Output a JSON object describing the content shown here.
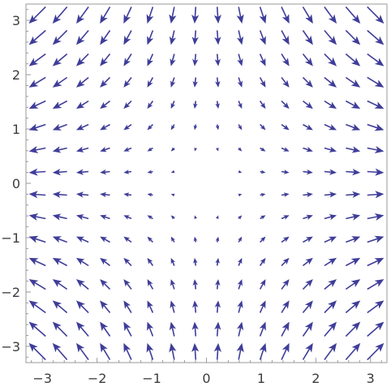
{
  "chart_data": {
    "type": "vector_field",
    "field": {
      "u": "x",
      "v": "-y"
    },
    "x_range": [
      -3.3,
      3.3
    ],
    "y_range": [
      -3.3,
      3.3
    ],
    "grid_samples": {
      "x_step": 0.4125,
      "y_step": 0.4125,
      "count_per_axis": 16,
      "start": -3.09375
    },
    "xticks": [
      -3,
      -2,
      -1,
      0,
      1,
      2,
      3
    ],
    "yticks": [
      -3,
      -2,
      -1,
      0,
      1,
      2,
      3
    ],
    "xtick_labels": [
      "−3",
      "−2",
      "−1",
      "0",
      "1",
      "2",
      "3"
    ],
    "ytick_labels": [
      "−3",
      "−2",
      "−1",
      "0",
      "1",
      "2",
      "3"
    ],
    "title": "",
    "xlabel": "",
    "ylabel": "",
    "grid": false,
    "frame": true,
    "colors": {
      "arrow": "#3f3d99",
      "frame": "#9a9a9a",
      "tick_text": "#3c3c3c"
    }
  }
}
